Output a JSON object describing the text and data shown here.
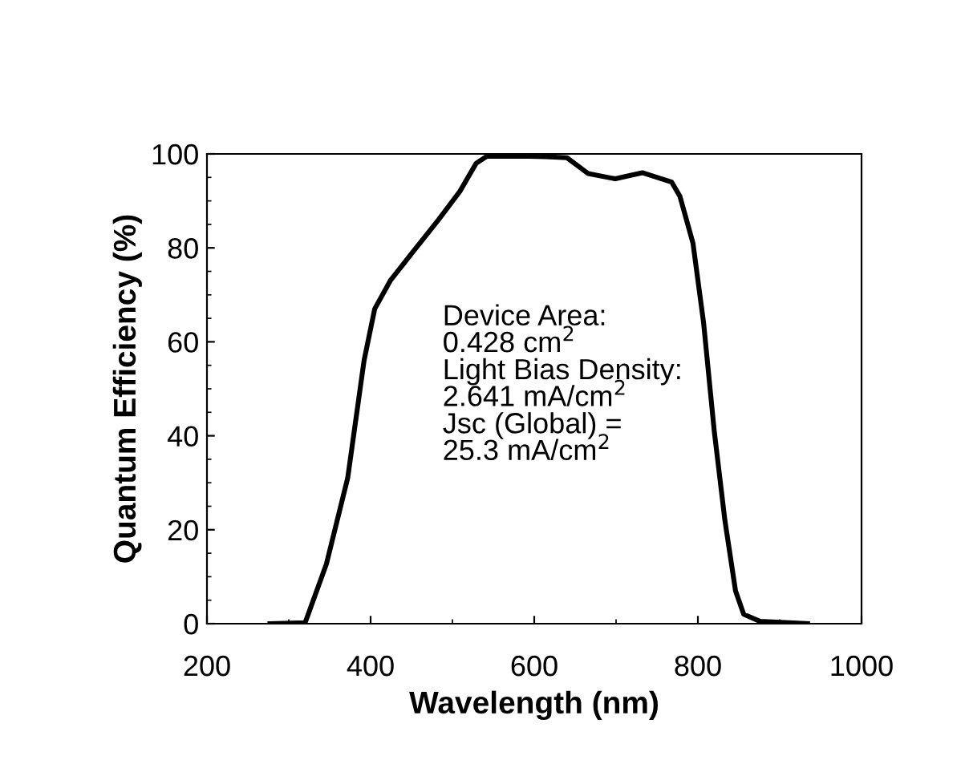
{
  "chart_data": {
    "type": "line",
    "xlabel": "Wavelength (nm)",
    "ylabel": "Quantum Efficiency (%)",
    "x": [
      277,
      320,
      346,
      372,
      392,
      405,
      424,
      451,
      483,
      509,
      529,
      542,
      594,
      614,
      640,
      666,
      699,
      732,
      768,
      778,
      794,
      807,
      820,
      833,
      846,
      856,
      876,
      934
    ],
    "series": [
      {
        "color": "#000000",
        "values": [
          0,
          0.2,
          12.7,
          31,
          56,
          67,
          73,
          79,
          86,
          92,
          98,
          99.5,
          99.5,
          99.4,
          99.2,
          95.8,
          94.7,
          96,
          94,
          91,
          81,
          64,
          41,
          22,
          7,
          2,
          0.5,
          0
        ]
      }
    ],
    "xlim": [
      200,
      1000
    ],
    "xticks": [
      200,
      400,
      600,
      800,
      1000
    ],
    "ylim": [
      0,
      100
    ],
    "yticks": [
      0,
      20,
      40,
      60,
      80,
      100
    ],
    "grid": false,
    "legend": false,
    "marker": "none",
    "line_style": "solid",
    "annotations": [
      "Device Area:\n0.428 cm$^{2}$\nLight Bias Density:\n2.641 mA/cm$^{2}$\nJsc (Global) =\n25.3 mA/cm$^{2}$"
    ]
  }
}
